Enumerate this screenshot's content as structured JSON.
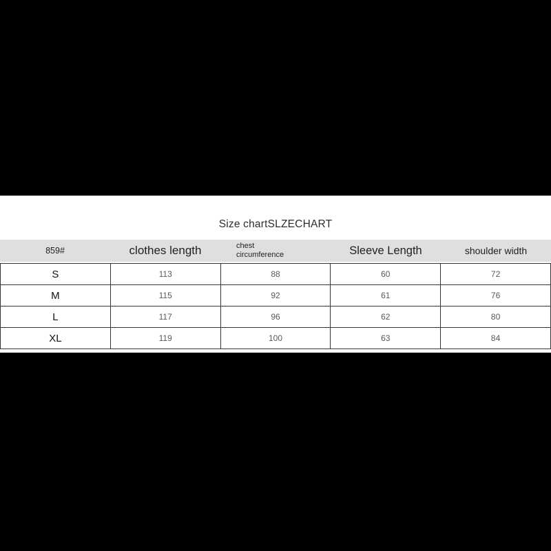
{
  "title": "Size chartSLZECHART",
  "chart_data": {
    "type": "table",
    "title": "Size chartSLZECHART",
    "columns": [
      "859#",
      "clothes length",
      "chest circumference",
      "Sleeve Length",
      "shoulder width"
    ],
    "rows": [
      [
        "S",
        113,
        88,
        60,
        72
      ],
      [
        "M",
        115,
        92,
        61,
        76
      ],
      [
        "L",
        117,
        96,
        62,
        80
      ],
      [
        "XL",
        119,
        100,
        63,
        84
      ]
    ]
  },
  "colors": {
    "band": "#000000",
    "content_background": "#ffffff",
    "header_background": "#dfdfdf",
    "table_border": "#333333",
    "size_label_text": "#111111",
    "value_text": "#595959",
    "title_text": "#2b2b2b"
  }
}
